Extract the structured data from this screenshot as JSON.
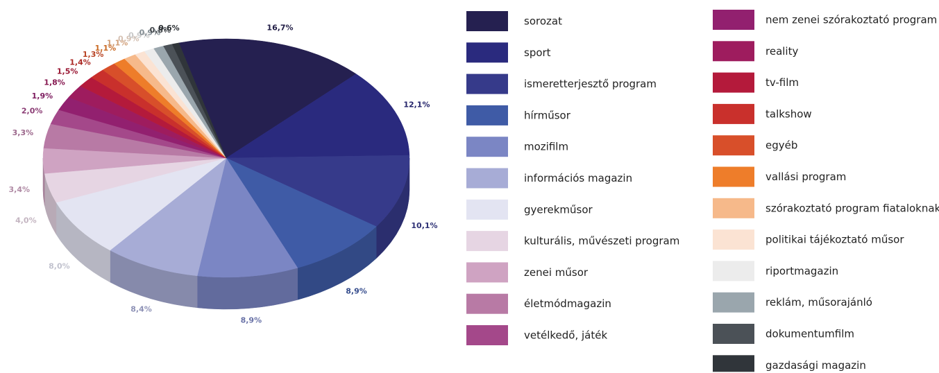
{
  "chart_data": {
    "type": "pie3d",
    "categories": [
      "sorozat",
      "sport",
      "ismeretterjesztő program",
      "hírműsor",
      "mozifilm",
      "információs magazin",
      "gyerekműsor",
      "kulturális, művészeti program",
      "zenei műsor",
      "életmódmagazin",
      "vetélkedő, játék",
      "nem zenei szórakoztató program",
      "reality",
      "tv-film",
      "talkshow",
      "egyéb",
      "vallási program",
      "szórakoztató program fiataloknak",
      "politikai tájékoztató műsor",
      "riportmagazin",
      "reklám, műsorajánló",
      "dokumentumfilm",
      "gazdasági magazin"
    ],
    "values": [
      16.7,
      12.1,
      10.1,
      8.9,
      8.9,
      8.4,
      8.0,
      4.0,
      3.4,
      3.3,
      2.0,
      1.9,
      1.8,
      1.5,
      1.4,
      1.3,
      1.1,
      1.1,
      0.9,
      0.9,
      0.9,
      0.8,
      0.6
    ],
    "value_labels": [
      "16,7%",
      "12,1%",
      "10,1%",
      "8,9%",
      "8,9%",
      "8,4%",
      "8,0%",
      "4,0%",
      "3,4%",
      "3,3%",
      "2,0%",
      "1,9%",
      "1,8%",
      "1,5%",
      "1,4%",
      "1,3%",
      "1,1%",
      "1,1%",
      "0,9%",
      "0,9%",
      "0,9%",
      "0,8%",
      "0,6%"
    ],
    "colors": [
      "#252050",
      "#2a2a7e",
      "#363a8a",
      "#3f5ba6",
      "#7b86c4",
      "#a7acd6",
      "#e3e4f2",
      "#e6d5e3",
      "#cfa3c2",
      "#b87aa5",
      "#a4488a",
      "#92206f",
      "#9e1c5e",
      "#b41a3b",
      "#c9302c",
      "#d84f2a",
      "#ee7d2a",
      "#f6b98a",
      "#fbe3d3",
      "#ececec",
      "#9aa6ad",
      "#4b5157",
      "#30353a"
    ]
  }
}
